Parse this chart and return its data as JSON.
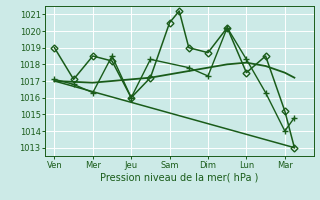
{
  "bg_color": "#cceae7",
  "grid_color": "#ffffff",
  "line_color": "#1a5c1a",
  "xlabel": "Pression niveau de la mer( hPa )",
  "xtick_labels": [
    "Ven",
    "Mer",
    "Jeu",
    "Sam",
    "Dim",
    "Lun",
    "Mar"
  ],
  "xtick_positions": [
    0,
    2,
    4,
    6,
    8,
    10,
    12
  ],
  "ylim": [
    1012.5,
    1021.5
  ],
  "yticks": [
    1013,
    1014,
    1015,
    1016,
    1017,
    1018,
    1019,
    1020,
    1021
  ],
  "xlim": [
    -0.5,
    13.5
  ],
  "series": [
    {
      "x": [
        0,
        1,
        2,
        3,
        4,
        5,
        6,
        6.5,
        7,
        8,
        9,
        10,
        11,
        12,
        12.5
      ],
      "y": [
        1019,
        1017.1,
        1018.5,
        1018.2,
        1016.0,
        1017.2,
        1020.5,
        1021.2,
        1019.0,
        1018.7,
        1020.2,
        1017.5,
        1018.5,
        1015.2,
        1013.0
      ],
      "marker": "D",
      "markersize": 3.5,
      "linewidth": 1.1,
      "markerfacecolor": "none"
    },
    {
      "x": [
        0,
        1,
        2,
        3,
        4,
        5,
        7,
        8,
        9,
        10,
        11,
        12,
        12.5
      ],
      "y": [
        1017.1,
        1016.8,
        1016.3,
        1018.5,
        1016.0,
        1018.3,
        1017.8,
        1017.3,
        1020.2,
        1018.3,
        1016.3,
        1014.0,
        1014.8
      ],
      "marker": "+",
      "markersize": 5,
      "linewidth": 1.0,
      "markerfacecolor": "#1a5c1a"
    },
    {
      "x": [
        0,
        1,
        2,
        3,
        4,
        5,
        6,
        7,
        8,
        9,
        10,
        11,
        12,
        12.5
      ],
      "y": [
        1017.0,
        1016.95,
        1016.9,
        1017.0,
        1017.1,
        1017.2,
        1017.4,
        1017.6,
        1017.8,
        1018.0,
        1018.1,
        1017.9,
        1017.5,
        1017.2
      ],
      "marker": "None",
      "markersize": 0,
      "linewidth": 1.3,
      "markerfacecolor": "none"
    },
    {
      "x": [
        0,
        12.5
      ],
      "y": [
        1017.0,
        1013.0
      ],
      "marker": "None",
      "markersize": 0,
      "linewidth": 1.1,
      "markerfacecolor": "none"
    }
  ]
}
